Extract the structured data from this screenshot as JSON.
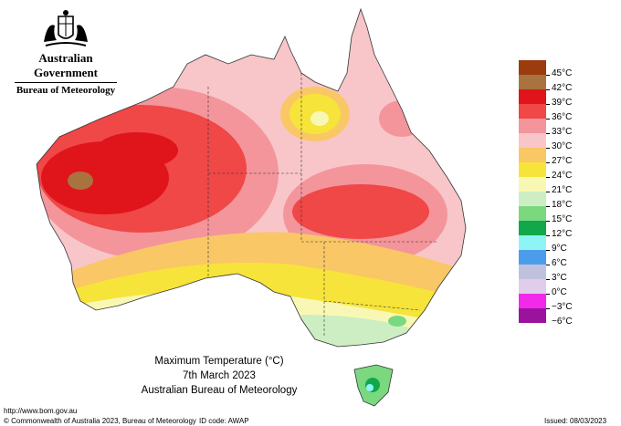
{
  "header": {
    "government": "Australian Government",
    "bureau": "Bureau of Meteorology"
  },
  "map": {
    "title": "Maximum Temperature (°C)",
    "date": "7th March 2023",
    "source": "Australian Bureau of Meteorology"
  },
  "legend": [
    {
      "label": "45°C",
      "color": "#9b3b0e"
    },
    {
      "label": "42°C",
      "color": "#a8733e"
    },
    {
      "label": "39°C",
      "color": "#e0141b"
    },
    {
      "label": "36°C",
      "color": "#f04747"
    },
    {
      "label": "33°C",
      "color": "#f3959b"
    },
    {
      "label": "30°C",
      "color": "#f8c6c8"
    },
    {
      "label": "27°C",
      "color": "#f9c766"
    },
    {
      "label": "24°C",
      "color": "#f7e43a"
    },
    {
      "label": "21°C",
      "color": "#f8f8b4"
    },
    {
      "label": "18°C",
      "color": "#cdeec3"
    },
    {
      "label": "15°C",
      "color": "#7ad87f"
    },
    {
      "label": "12°C",
      "color": "#10a84a"
    },
    {
      "label": "9°C",
      "color": "#8ff4f6"
    },
    {
      "label": "6°C",
      "color": "#4c9cec"
    },
    {
      "label": "3°C",
      "color": "#c0c2dd"
    },
    {
      "label": "0°C",
      "color": "#dfcdea"
    },
    {
      "label": "−3°C",
      "color": "#f228ea"
    },
    {
      "label": "−6°C",
      "color": "#9b139d"
    }
  ],
  "footer": {
    "url": "http://www.bom.gov.au",
    "copyright": "© Commonwealth of Australia 2023, Bureau of Meteorology",
    "id_code": "ID code: AWAP",
    "issued": "Issued: 08/03/2023"
  }
}
